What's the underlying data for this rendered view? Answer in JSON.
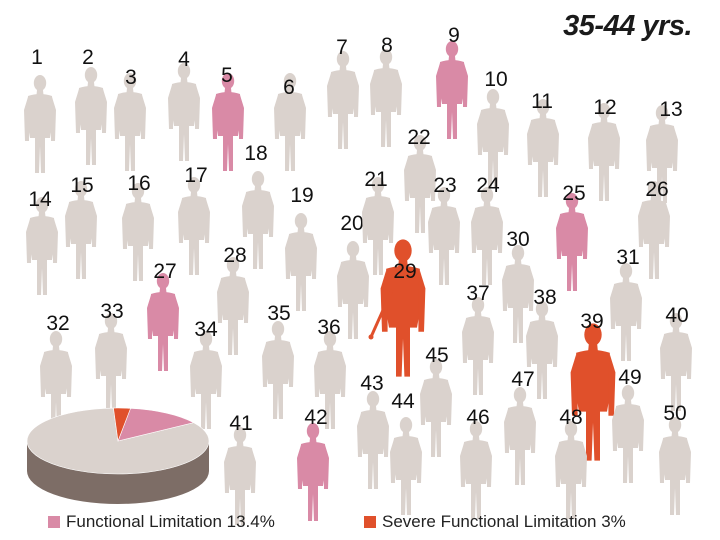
{
  "title": "35-44 yrs.",
  "colors": {
    "none": "#dad2cd",
    "functional": "#d98aa6",
    "severe": "#e0502b",
    "pie_side": "#7d6d66"
  },
  "people": [
    {
      "n": "1",
      "status": "none"
    },
    {
      "n": "2",
      "status": "none"
    },
    {
      "n": "3",
      "status": "none"
    },
    {
      "n": "4",
      "status": "none"
    },
    {
      "n": "5",
      "status": "functional"
    },
    {
      "n": "6",
      "status": "none"
    },
    {
      "n": "7",
      "status": "none"
    },
    {
      "n": "8",
      "status": "none"
    },
    {
      "n": "9",
      "status": "functional"
    },
    {
      "n": "10",
      "status": "none"
    },
    {
      "n": "11",
      "status": "none"
    },
    {
      "n": "12",
      "status": "none"
    },
    {
      "n": "13",
      "status": "none"
    },
    {
      "n": "14",
      "status": "none"
    },
    {
      "n": "15",
      "status": "none"
    },
    {
      "n": "16",
      "status": "none"
    },
    {
      "n": "17",
      "status": "none"
    },
    {
      "n": "18",
      "status": "none"
    },
    {
      "n": "19",
      "status": "none"
    },
    {
      "n": "20",
      "status": "none"
    },
    {
      "n": "21",
      "status": "none"
    },
    {
      "n": "22",
      "status": "none"
    },
    {
      "n": "23",
      "status": "none"
    },
    {
      "n": "24",
      "status": "none"
    },
    {
      "n": "25",
      "status": "functional"
    },
    {
      "n": "26",
      "status": "none"
    },
    {
      "n": "27",
      "status": "functional"
    },
    {
      "n": "28",
      "status": "none"
    },
    {
      "n": "29",
      "status": "severe"
    },
    {
      "n": "30",
      "status": "none"
    },
    {
      "n": "31",
      "status": "none"
    },
    {
      "n": "32",
      "status": "none"
    },
    {
      "n": "33",
      "status": "none"
    },
    {
      "n": "34",
      "status": "none"
    },
    {
      "n": "35",
      "status": "none"
    },
    {
      "n": "36",
      "status": "none"
    },
    {
      "n": "37",
      "status": "none"
    },
    {
      "n": "38",
      "status": "none"
    },
    {
      "n": "39",
      "status": "severe"
    },
    {
      "n": "40",
      "status": "none"
    },
    {
      "n": "41",
      "status": "none"
    },
    {
      "n": "42",
      "status": "functional"
    },
    {
      "n": "43",
      "status": "none"
    },
    {
      "n": "44",
      "status": "none"
    },
    {
      "n": "45",
      "status": "none"
    },
    {
      "n": "46",
      "status": "none"
    },
    {
      "n": "47",
      "status": "none"
    },
    {
      "n": "48",
      "status": "none"
    },
    {
      "n": "49",
      "status": "none"
    },
    {
      "n": "50",
      "status": "none"
    }
  ],
  "chart_data": {
    "type": "pie",
    "slices": [
      {
        "key": "none",
        "value": 83.6
      },
      {
        "key": "functional",
        "value": 13.4
      },
      {
        "key": "severe",
        "value": 3.0
      }
    ]
  },
  "legend": [
    {
      "key": "functional",
      "label": "Functional Limitation 13.4%"
    },
    {
      "key": "severe",
      "label": "Severe Functional Limitation 3%"
    }
  ]
}
